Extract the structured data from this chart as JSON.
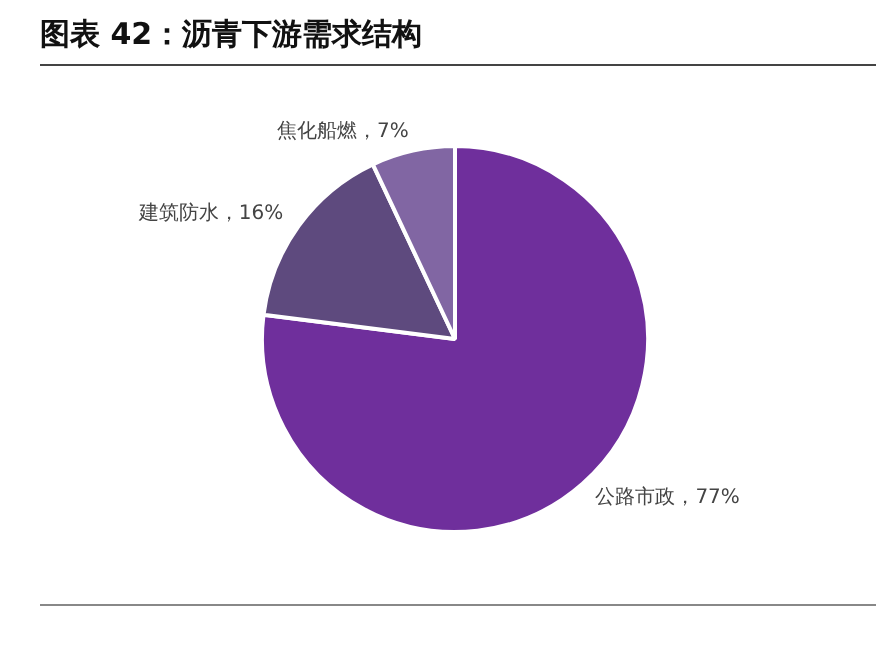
{
  "chart_data": {
    "type": "pie",
    "title": "图表 42：沥青下游需求结构",
    "categories": [
      "公路市政",
      "建筑防水",
      "焦化船燃"
    ],
    "values": [
      77,
      16,
      7
    ],
    "colors": [
      "#6f2f9c",
      "#5e4a7e",
      "#8166a3"
    ],
    "value_labels": [
      "77%",
      "16%",
      "7%"
    ],
    "legend": false
  }
}
